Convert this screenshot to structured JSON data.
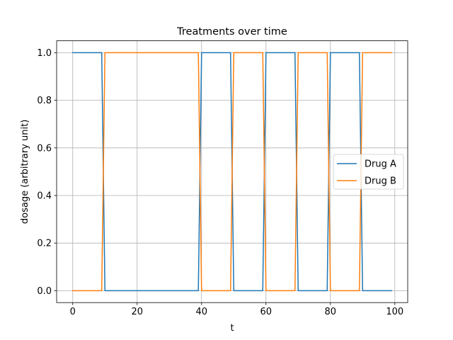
{
  "chart_data": {
    "type": "line",
    "title": "Treatments over time",
    "xlabel": "t",
    "ylabel": "dosage (arbitrary unit)",
    "xlim": [
      -5,
      104
    ],
    "ylim": [
      -0.05,
      1.05
    ],
    "xticks": [
      0,
      20,
      40,
      60,
      80,
      100
    ],
    "xtick_labels": [
      "0",
      "20",
      "40",
      "60",
      "80",
      "100"
    ],
    "yticks": [
      0.0,
      0.2,
      0.4,
      0.6,
      0.8,
      1.0
    ],
    "ytick_labels": [
      "0.0",
      "0.2",
      "0.4",
      "0.6",
      "0.8",
      "1.0"
    ],
    "grid": true,
    "legend_position": "center-right",
    "series": [
      {
        "name": "Drug A",
        "color": "#1f77b4",
        "x": [
          0,
          9,
          10,
          39,
          40,
          49,
          50,
          59,
          60,
          69,
          70,
          79,
          80,
          89,
          90,
          99
        ],
        "y": [
          1,
          1,
          0,
          0,
          1,
          1,
          0,
          0,
          1,
          1,
          0,
          0,
          1,
          1,
          0,
          0
        ]
      },
      {
        "name": "Drug B",
        "color": "#ff7f0e",
        "x": [
          0,
          9,
          10,
          39,
          40,
          49,
          50,
          59,
          60,
          69,
          70,
          79,
          80,
          89,
          90,
          99
        ],
        "y": [
          0,
          0,
          1,
          1,
          0,
          0,
          1,
          1,
          0,
          0,
          1,
          1,
          0,
          0,
          1,
          1
        ]
      }
    ]
  }
}
